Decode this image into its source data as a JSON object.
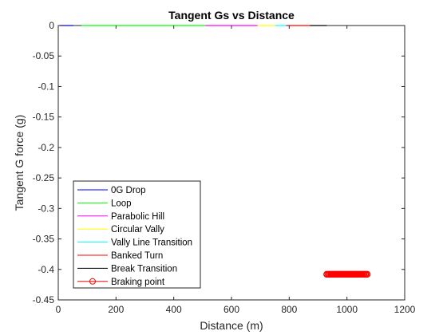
{
  "chart_data": {
    "type": "line",
    "title": "Tangent Gs vs Distance",
    "xlabel": "Distance (m)",
    "ylabel": "Tangent G force (g)",
    "xlim": [
      0,
      1200
    ],
    "ylim": [
      -0.45,
      0
    ],
    "x_ticks": [
      0,
      200,
      400,
      600,
      800,
      1000,
      1200
    ],
    "y_ticks": [
      0,
      -0.05,
      -0.1,
      -0.15,
      -0.2,
      -0.25,
      -0.3,
      -0.35,
      -0.4,
      -0.45
    ],
    "x_tick_labels": [
      "0",
      "200",
      "400",
      "600",
      "800",
      "1000",
      "1200"
    ],
    "y_tick_labels": [
      "0",
      "-0.05",
      "-0.1",
      "-0.15",
      "-0.2",
      "-0.25",
      "-0.3",
      "-0.35",
      "-0.4",
      "-0.45"
    ],
    "grid": false,
    "legend_position": "bottom-left",
    "series": [
      {
        "name": "0G Drop",
        "color": "#0000ff",
        "x": [
          5,
          52
        ],
        "y": [
          0,
          0
        ]
      },
      {
        "name": "Loop",
        "color": "#00ff00",
        "x": [
          80,
          510
        ],
        "y": [
          0,
          0
        ]
      },
      {
        "name": "Parabolic Hill",
        "color": "#ff00ff",
        "x": [
          510,
          690
        ],
        "y": [
          0,
          0
        ]
      },
      {
        "name": "Circular Vally",
        "color": "#ffff00",
        "x": [
          690,
          752
        ],
        "y": [
          0,
          0
        ]
      },
      {
        "name": "Vally Line Transition",
        "color": "#00ffff",
        "x": [
          752,
          790
        ],
        "y": [
          0,
          0
        ]
      },
      {
        "name": "Banked Turn",
        "color": "#ff0000",
        "x": [
          790,
          872
        ],
        "y": [
          0,
          0
        ]
      },
      {
        "name": "Break Transition",
        "color": "#000000",
        "x": [
          872,
          930
        ],
        "y": [
          0,
          0
        ]
      },
      {
        "name": "Braking point",
        "color": "#ff0000",
        "marker": "circle",
        "x": [
          930,
          1070
        ],
        "y": [
          -0.408,
          -0.408
        ]
      }
    ]
  }
}
